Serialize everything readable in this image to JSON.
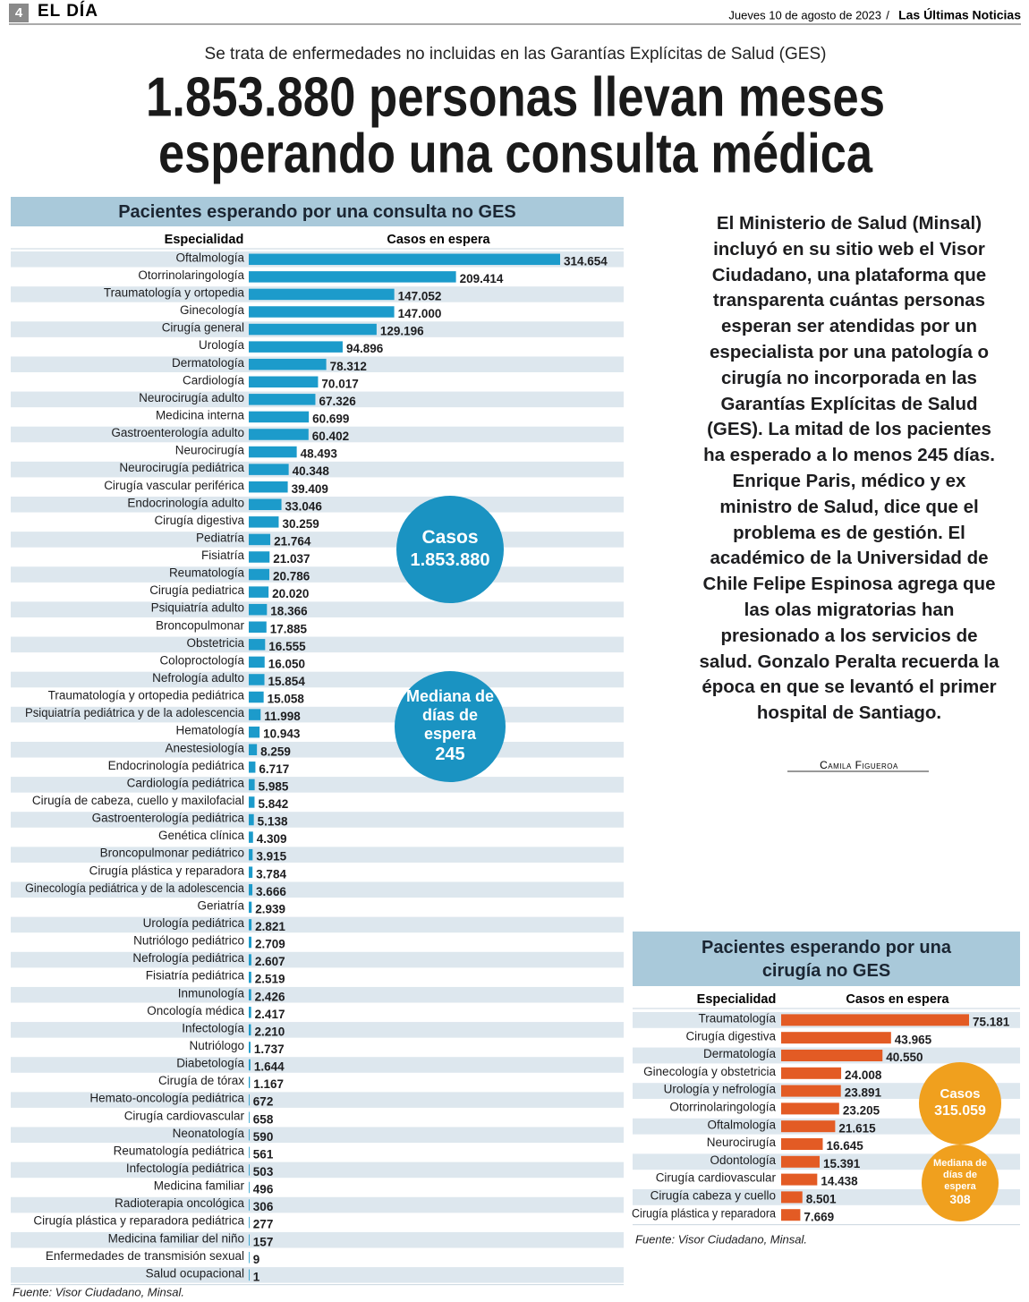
{
  "header": {
    "page": "4",
    "section": "EL DÍA",
    "date": "Jueves 10 de agosto de 2023",
    "separator": "/",
    "newspaper": "Las Últimas Noticias"
  },
  "kicker": "Se trata de enfermedades no incluidas en las Garantías Explícitas de Salud (GES)",
  "headline": [
    "1.853.880 personas llevan meses",
    "esperando una consulta médica"
  ],
  "body": "El Ministerio de Salud (Minsal) incluyó en su sitio web el Visor Ciudadano, una plataforma que transparenta cuántas personas esperan ser atendidas por un especialista por una patología o cirugía no incorporada en las Garantías Explícitas de Salud (GES). La mitad de los pacientes ha esperado a lo menos 245 días. Enrique Paris, médico y ex ministro de Salud, dice que el problema es de gestión. El académico de la Universidad de Chile Felipe Espinosa agrega que las olas migratorias han presionado a los servicios de salud. Gonzalo Peralta recuerda la época en que se levantó el primer hospital de Santiago.",
  "byline": "Camila Figueroa",
  "chart_data": [
    {
      "type": "bar",
      "orientation": "horizontal",
      "title": "Pacientes esperando por una consulta no GES",
      "category_header": "Especialidad",
      "value_header": "Casos en espera",
      "color": "#1c9bcb",
      "categories": [
        "Oftalmología",
        "Otorrinolaringología",
        "Traumatología y ortopedia",
        "Ginecología",
        "Cirugía general",
        "Urología",
        "Dermatología",
        "Cardiología",
        "Neurocirugía adulto",
        "Medicina interna",
        "Gastroenterología adulto",
        "Neurocirugía",
        "Neurocirugía pediátrica",
        "Cirugía vascular periférica",
        "Endocrinología adulto",
        "Cirugía digestiva",
        "Pediatría",
        "Fisiatría",
        "Reumatología",
        "Cirugía pediatrica",
        "Psiquiatría adulto",
        "Broncopulmonar",
        "Obstetricia",
        "Coloproctología",
        "Nefrología adulto",
        "Traumatología y ortopedia pediátrica",
        "Psiquiatría pediátrica y de la adolescencia",
        "Hematología",
        "Anestesiología",
        "Endocrinología pediátrica",
        "Cardiología pediátrica",
        "Cirugía de cabeza, cuello y maxilofacial",
        "Gastroenterología pediátrica",
        "Genética clínica",
        "Broncopulmonar pediátrico",
        "Cirugía plástica y reparadora",
        "Ginecología pediátrica y de la adolescencia",
        "Geriatría",
        "Urología pediátrica",
        "Nutriólogo pediátrico",
        "Nefrología pediátrica",
        "Fisiatría pediátrica",
        "Inmunología",
        "Oncología médica",
        "Infectología",
        "Nutriólogo",
        "Diabetología",
        "Cirugía de tórax",
        "Hemato-oncología pediátrica",
        "Cirugía cardiovascular",
        "Neonatología",
        "Reumatología pediátrica",
        "Infectología pediátrica",
        "Medicina familiar",
        "Radioterapia oncológica",
        "Cirugía plástica y reparadora pediátrica",
        "Medicina familiar del niño",
        "Enfermedades de transmisión sexual",
        "Salud ocupacional"
      ],
      "values": [
        314654,
        209414,
        147052,
        147000,
        129196,
        94896,
        78312,
        70017,
        67326,
        60699,
        60402,
        48493,
        40348,
        39409,
        33046,
        30259,
        21764,
        21037,
        20786,
        20020,
        18366,
        17885,
        16555,
        16050,
        15854,
        15058,
        11998,
        10943,
        8259,
        6717,
        5985,
        5842,
        5138,
        4309,
        3915,
        3784,
        3666,
        2939,
        2821,
        2709,
        2607,
        2519,
        2426,
        2417,
        2210,
        1737,
        1644,
        1167,
        672,
        658,
        590,
        561,
        503,
        496,
        306,
        277,
        157,
        9,
        1
      ],
      "value_labels": [
        "314.654",
        "209.414",
        "147.052",
        "147.000",
        "129.196",
        "94.896",
        "78.312",
        "70.017",
        "67.326",
        "60.699",
        "60.402",
        "48.493",
        "40.348",
        "39.409",
        "33.046",
        "30.259",
        "21.764",
        "21.037",
        "20.786",
        "20.020",
        "18.366",
        "17.885",
        "16.555",
        "16.050",
        "15.854",
        "15.058",
        "11.998",
        "10.943",
        "8.259",
        "6.717",
        "5.985",
        "5.842",
        "5.138",
        "4.309",
        "3.915",
        "3.784",
        "3.666",
        "2.939",
        "2.821",
        "2.709",
        "2.607",
        "2.519",
        "2.426",
        "2.417",
        "2.210",
        "1.737",
        "1.644",
        "1.167",
        "672",
        "658",
        "590",
        "561",
        "503",
        "496",
        "306",
        "277",
        "157",
        "9",
        "1"
      ],
      "callouts": [
        {
          "label": "Casos",
          "value": "1.853.880",
          "color": "#1a93c2"
        },
        {
          "label": "Mediana de días de espera",
          "value": "245",
          "color": "#1a93c2"
        }
      ],
      "source": "Fuente: Visor Ciudadano, Minsal."
    },
    {
      "type": "bar",
      "orientation": "horizontal",
      "title": "Pacientes esperando por una cirugía no GES",
      "category_header": "Especialidad",
      "value_header": "Casos en espera",
      "color": "#e35b24",
      "categories": [
        "Traumatología",
        "Cirugía digestiva",
        "Dermatología",
        "Ginecología y obstetricia",
        "Urología y nefrología",
        "Otorrinolaringología",
        "Oftalmología",
        "Neurocirugía",
        "Odontología",
        "Cirugía cardiovascular",
        "Cirugía cabeza y cuello",
        "Cirugía plástica y reparadora"
      ],
      "values": [
        75181,
        43965,
        40550,
        24008,
        23891,
        23205,
        21615,
        16645,
        15391,
        14438,
        8501,
        7669
      ],
      "value_labels": [
        "75.181",
        "43.965",
        "40.550",
        "24.008",
        "23.891",
        "23.205",
        "21.615",
        "16.645",
        "15.391",
        "14.438",
        "8.501",
        "7.669"
      ],
      "callouts": [
        {
          "label": "Casos",
          "value": "315.059",
          "color": "#f0a01e"
        },
        {
          "label": "Mediana de días de espera",
          "value": "308",
          "color": "#f0a01e"
        }
      ],
      "source": "Fuente: Visor Ciudadano, Minsal."
    }
  ]
}
